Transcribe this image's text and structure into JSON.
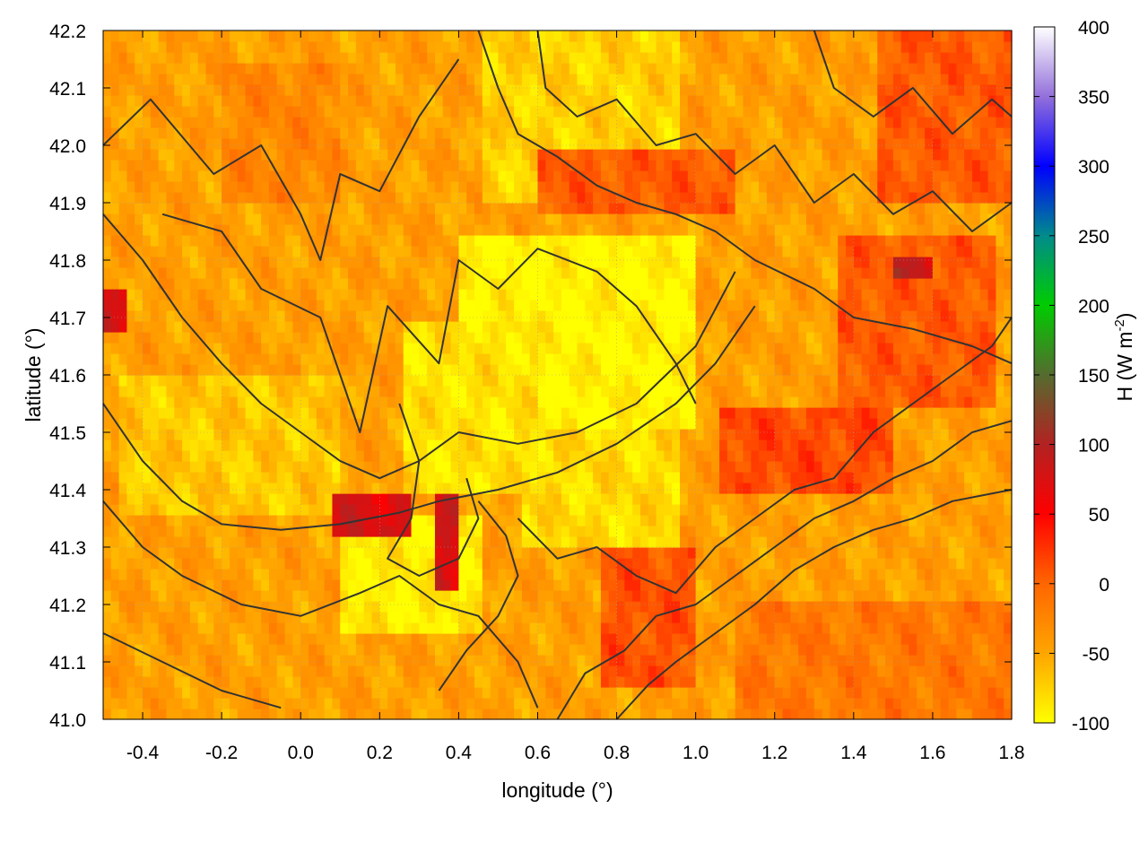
{
  "chart_data": {
    "type": "heatmap",
    "xlabel": "longitude (°)",
    "ylabel": "latitude (°)",
    "colorbar_label": "H (W m-2)",
    "colorbar_label_parts": {
      "base": "H (W m",
      "sup": "-2",
      "close": ")"
    },
    "xlim": [
      -0.5,
      1.8
    ],
    "ylim": [
      41.0,
      42.2
    ],
    "x_ticks": [
      "-0.4",
      "-0.2",
      "0.0",
      "0.2",
      "0.4",
      "0.6",
      "0.8",
      "1.0",
      "1.2",
      "1.4",
      "1.6",
      "1.8"
    ],
    "y_ticks": [
      "41.0",
      "41.1",
      "41.2",
      "41.3",
      "41.4",
      "41.5",
      "41.6",
      "41.7",
      "41.8",
      "41.9",
      "42.0",
      "42.1",
      "42.2"
    ],
    "colorbar_range": [
      -100,
      400
    ],
    "colorbar_ticks": [
      "-100",
      "-50",
      "0",
      "50",
      "100",
      "150",
      "200",
      "250",
      "300",
      "350",
      "400"
    ],
    "colormap": [
      {
        "value": -100,
        "color": "#ffff00"
      },
      {
        "value": -50,
        "color": "#ffa500"
      },
      {
        "value": 0,
        "color": "#ff6600"
      },
      {
        "value": 50,
        "color": "#ff0000"
      },
      {
        "value": 100,
        "color": "#b22222"
      },
      {
        "value": 150,
        "color": "#556b2f"
      },
      {
        "value": 200,
        "color": "#00cc00"
      },
      {
        "value": 250,
        "color": "#008b8b"
      },
      {
        "value": 300,
        "color": "#0000ff"
      },
      {
        "value": 350,
        "color": "#9370db"
      },
      {
        "value": 400,
        "color": "#ffffff"
      }
    ],
    "grid": true,
    "overlay": "terrain contour lines",
    "regions": [
      {
        "lon": [
          -0.5,
          1.8
        ],
        "lat": [
          41.0,
          42.2
        ],
        "value": -45
      },
      {
        "lon": [
          0.4,
          1.0
        ],
        "lat": [
          41.5,
          41.85
        ],
        "value": -95
      },
      {
        "lon": [
          0.1,
          0.45
        ],
        "lat": [
          41.15,
          41.35
        ],
        "value": -90
      },
      {
        "lon": [
          0.25,
          0.6
        ],
        "lat": [
          41.4,
          41.7
        ],
        "value": -85
      },
      {
        "lon": [
          0.55,
          0.95
        ],
        "lat": [
          41.3,
          41.5
        ],
        "value": -80
      },
      {
        "lon": [
          -0.45,
          0.1
        ],
        "lat": [
          41.35,
          41.6
        ],
        "value": -70
      },
      {
        "lon": [
          0.45,
          0.95
        ],
        "lat": [
          41.9,
          42.2
        ],
        "value": -75
      },
      {
        "lon": [
          1.1,
          1.8
        ],
        "lat": [
          41.0,
          41.2
        ],
        "value": -15
      },
      {
        "lon": [
          -0.2,
          0.1
        ],
        "lat": [
          41.9,
          42.15
        ],
        "value": -25
      },
      {
        "lon": [
          1.05,
          1.5
        ],
        "lat": [
          41.4,
          41.55
        ],
        "value": 15
      },
      {
        "lon": [
          0.08,
          0.28
        ],
        "lat": [
          41.32,
          41.4
        ],
        "value": 75
      },
      {
        "lon": [
          0.33,
          0.4
        ],
        "lat": [
          41.22,
          41.4
        ],
        "value": 75
      },
      {
        "lon": [
          0.75,
          1.0
        ],
        "lat": [
          41.05,
          41.3
        ],
        "value": 10
      },
      {
        "lon": [
          1.35,
          1.75
        ],
        "lat": [
          41.55,
          41.85
        ],
        "value": 5
      },
      {
        "lon": [
          1.5,
          1.6
        ],
        "lat": [
          41.77,
          41.8
        ],
        "value": 90
      },
      {
        "lon": [
          -0.5,
          -0.45
        ],
        "lat": [
          41.68,
          41.75
        ],
        "value": 70
      },
      {
        "lon": [
          1.45,
          1.8
        ],
        "lat": [
          41.9,
          42.2
        ],
        "value": 5
      },
      {
        "lon": [
          0.6,
          1.1
        ],
        "lat": [
          41.88,
          42.0
        ],
        "value": 5
      }
    ]
  }
}
